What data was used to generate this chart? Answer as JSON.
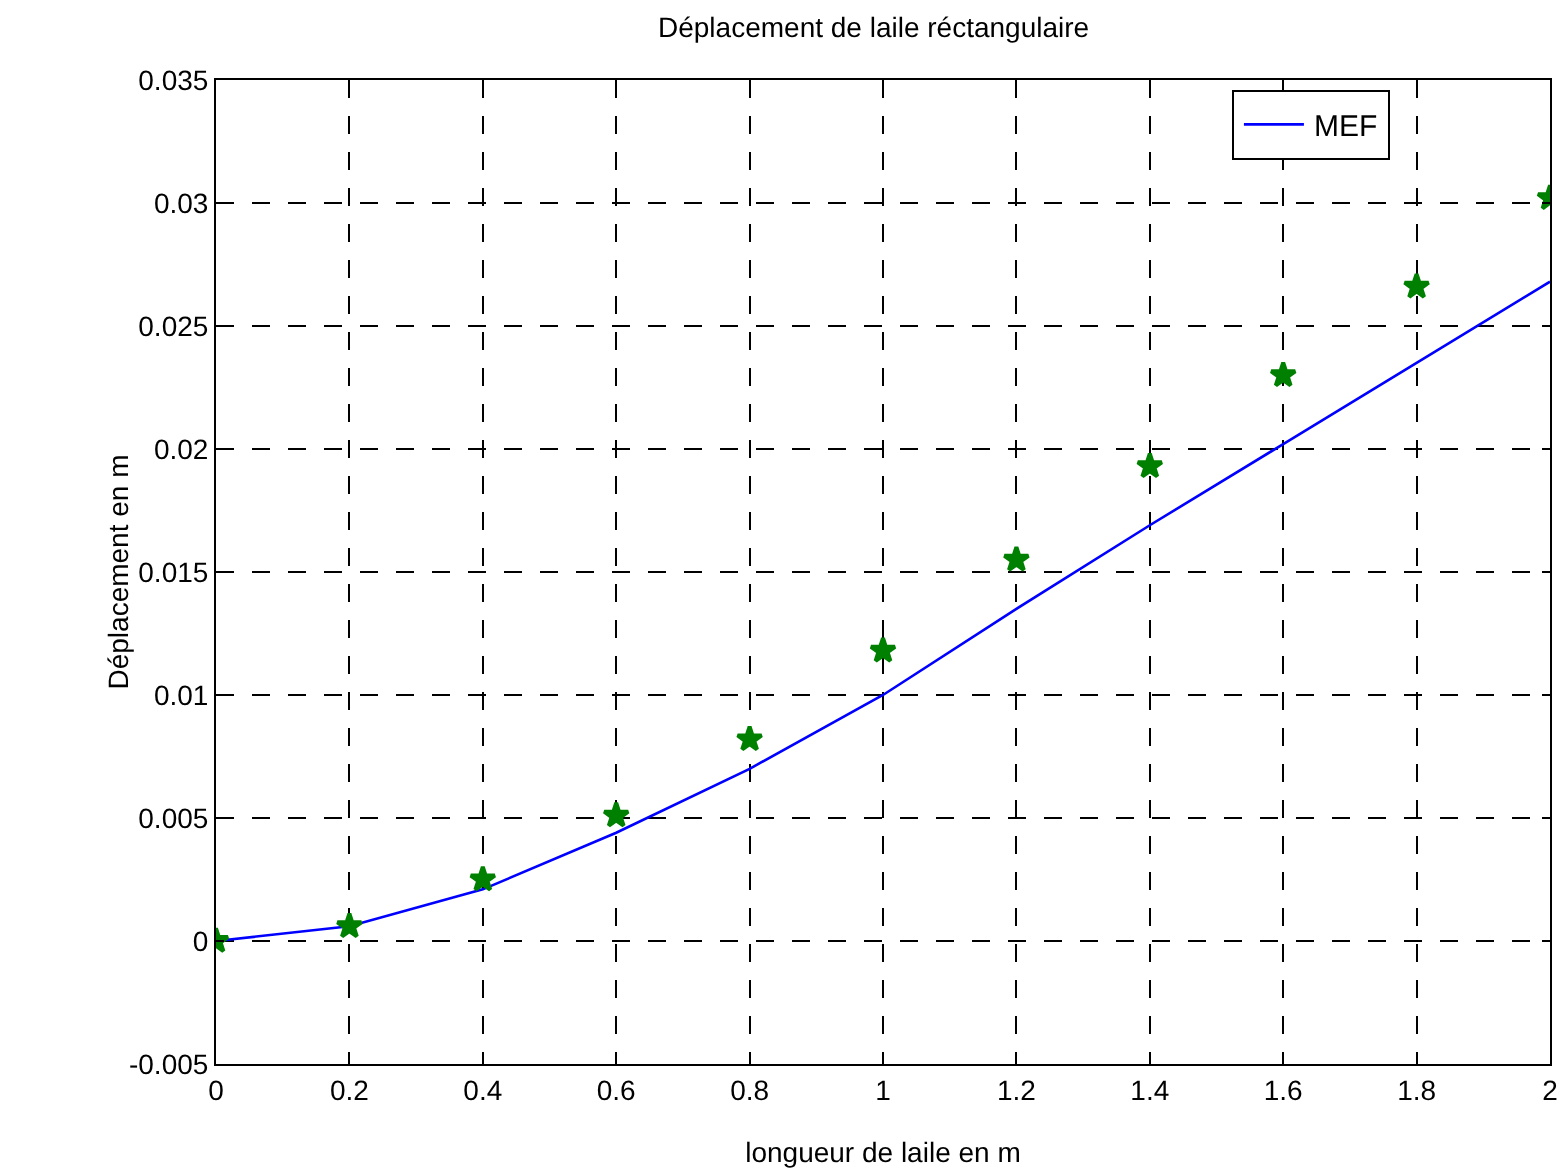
{
  "chart_data": {
    "type": "line",
    "title": "Déplacement de laile réctangulaire",
    "xlabel": "longueur de laile en m",
    "ylabel": "Déplacement en m",
    "x": [
      0,
      0.2,
      0.4,
      0.6,
      0.8,
      1,
      1.2,
      1.4,
      1.6,
      1.8,
      2
    ],
    "series": [
      {
        "name": "MEF",
        "color": "#0000ff",
        "marker": "none",
        "line_style": "solid",
        "values": [
          0,
          0.0006,
          0.0021,
          0.0044,
          0.007,
          0.01,
          0.0135,
          0.0169,
          0.0202,
          0.0235,
          0.0268
        ]
      },
      {
        "type": "scatter",
        "color": "#008000",
        "marker": "star",
        "values": [
          0,
          0.0006,
          0.0025,
          0.0051,
          0.0082,
          0.0118,
          0.0155,
          0.0193,
          0.023,
          0.0266,
          0.0302
        ]
      }
    ],
    "xlim": [
      0,
      2
    ],
    "xticks": [
      0,
      0.2,
      0.4,
      0.6,
      0.8,
      1,
      1.2,
      1.4,
      1.6,
      1.8,
      2
    ],
    "ylim": [
      -0.005,
      0.035
    ],
    "yticks": [
      -0.005,
      0,
      0.005,
      0.01,
      0.015,
      0.02,
      0.025,
      0.03,
      0.035
    ],
    "grid": true,
    "legend": "top right"
  }
}
